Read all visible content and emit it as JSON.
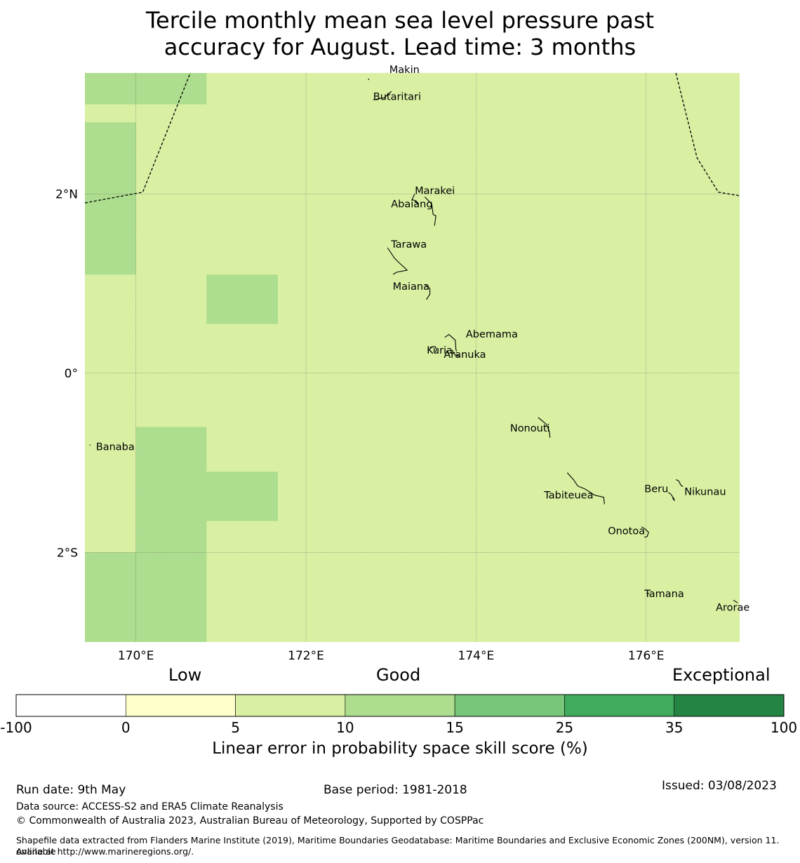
{
  "title": {
    "line1": "Tercile monthly mean sea level pressure past",
    "line2": "accuracy for August. Lead time: 3 months"
  },
  "map": {
    "background_color": "#d9f0a3",
    "lon_range": [
      169.4,
      177.1
    ],
    "lat_range": [
      -3.0,
      3.35
    ],
    "lon_ticks": [
      {
        "value": 170,
        "label": "170°E"
      },
      {
        "value": 172,
        "label": "172°E"
      },
      {
        "value": 174,
        "label": "174°E"
      },
      {
        "value": 176,
        "label": "176°E"
      }
    ],
    "lat_ticks": [
      {
        "value": 2,
        "label": "2°N"
      },
      {
        "value": 0,
        "label": "0°"
      },
      {
        "value": -2,
        "label": "2°S"
      }
    ],
    "cells_15": [
      {
        "lon": [
          169.4,
          170.83
        ],
        "lat": [
          3.0,
          3.35
        ]
      },
      {
        "lon": [
          169.4,
          170.0
        ],
        "lat": [
          1.1,
          2.8
        ]
      },
      {
        "lon": [
          170.83,
          171.67
        ],
        "lat": [
          0.55,
          1.1
        ]
      },
      {
        "lon": [
          170.0,
          170.83
        ],
        "lat": [
          -2.0,
          -0.6
        ]
      },
      {
        "lon": [
          170.83,
          171.67
        ],
        "lat": [
          -1.65,
          -1.1
        ]
      },
      {
        "lon": [
          169.4,
          170.83
        ],
        "lat": [
          -3.0,
          -2.0
        ]
      }
    ],
    "islands": [
      {
        "name": "Makin",
        "lon": 172.98,
        "lat": 3.35
      },
      {
        "name": "Butaritari",
        "lon": 172.79,
        "lat": 3.05
      },
      {
        "name": "Marakei",
        "lon": 173.28,
        "lat": 2.0
      },
      {
        "name": "Abaiang",
        "lon": 173.0,
        "lat": 1.85
      },
      {
        "name": "Tarawa",
        "lon": 173.0,
        "lat": 1.4
      },
      {
        "name": "Maiana",
        "lon": 173.02,
        "lat": 0.93
      },
      {
        "name": "Abemama",
        "lon": 173.88,
        "lat": 0.4
      },
      {
        "name": "Kuria",
        "lon": 173.42,
        "lat": 0.22
      },
      {
        "name": "Aranuka",
        "lon": 173.62,
        "lat": 0.17
      },
      {
        "name": "Nonouti",
        "lon": 174.4,
        "lat": -0.65
      },
      {
        "name": "Banaba",
        "lon": 169.53,
        "lat": -0.86
      },
      {
        "name": "Tabiteuea",
        "lon": 174.8,
        "lat": -1.4
      },
      {
        "name": "Beru",
        "lon": 175.98,
        "lat": -1.33
      },
      {
        "name": "Nikunau",
        "lon": 176.45,
        "lat": -1.36
      },
      {
        "name": "Onotoa",
        "lon": 175.55,
        "lat": -1.8
      },
      {
        "name": "Tamana",
        "lon": 175.98,
        "lat": -2.5
      },
      {
        "name": "Arorae",
        "lon": 176.82,
        "lat": -2.65
      }
    ],
    "eez_boundaries": [
      [
        [
          169.4,
          1.9
        ],
        [
          170.08,
          2.02
        ],
        [
          170.64,
          3.35
        ]
      ],
      [
        [
          176.35,
          3.35
        ],
        [
          176.6,
          2.4
        ],
        [
          176.85,
          2.02
        ],
        [
          177.1,
          1.98
        ]
      ]
    ]
  },
  "colorbar": {
    "headings": {
      "low": "Low",
      "good": "Good",
      "exceptional": "Exceptional"
    },
    "ticks": [
      "-100",
      "0",
      "5",
      "10",
      "15",
      "25",
      "35",
      "100"
    ],
    "colors": [
      "#ffffff",
      "#ffffcc",
      "#d9f0a3",
      "#addd8e",
      "#78c679",
      "#41ab5d",
      "#238443"
    ],
    "label": "Linear error in probability space skill score (%)"
  },
  "footer": {
    "run_date": "Run date: 9th May",
    "base_period": "Base period: 1981-2018",
    "issued": "Issued: 03/08/2023",
    "data_source": "Data source: ACCESS-S2 and ERA5 Climate Reanalysis",
    "copyright": "© Commonwealth of Australia 2023, Australian Bureau of Meteorology, Supported by COSPPac",
    "shapefile_line1": "Shapefile data extracted from Flanders Marine Institute (2019), Maritime Boundaries Geodatabase: Maritime Boundaries and Exclusive Economic Zones (200NM), version 11. Available",
    "shapefile_line2": "online at http://www.marineregions.org/."
  }
}
